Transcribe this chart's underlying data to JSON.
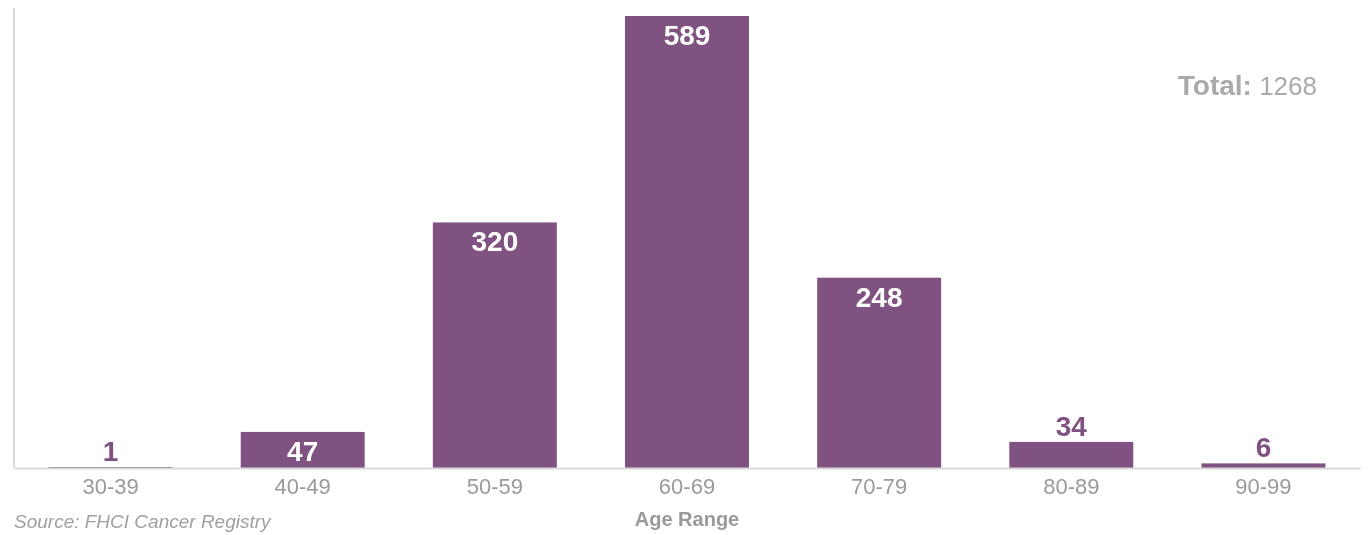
{
  "chart_data": {
    "type": "bar",
    "categories": [
      "30-39",
      "40-49",
      "50-59",
      "60-69",
      "70-79",
      "80-89",
      "90-99"
    ],
    "values": [
      1,
      47,
      320,
      589,
      248,
      34,
      6
    ],
    "color": "#7f5281",
    "xlabel": "Age Range",
    "data_labels": true,
    "annotations": [
      "Total: 1268",
      "Source: FHCI Cancer Registry"
    ]
  }
}
